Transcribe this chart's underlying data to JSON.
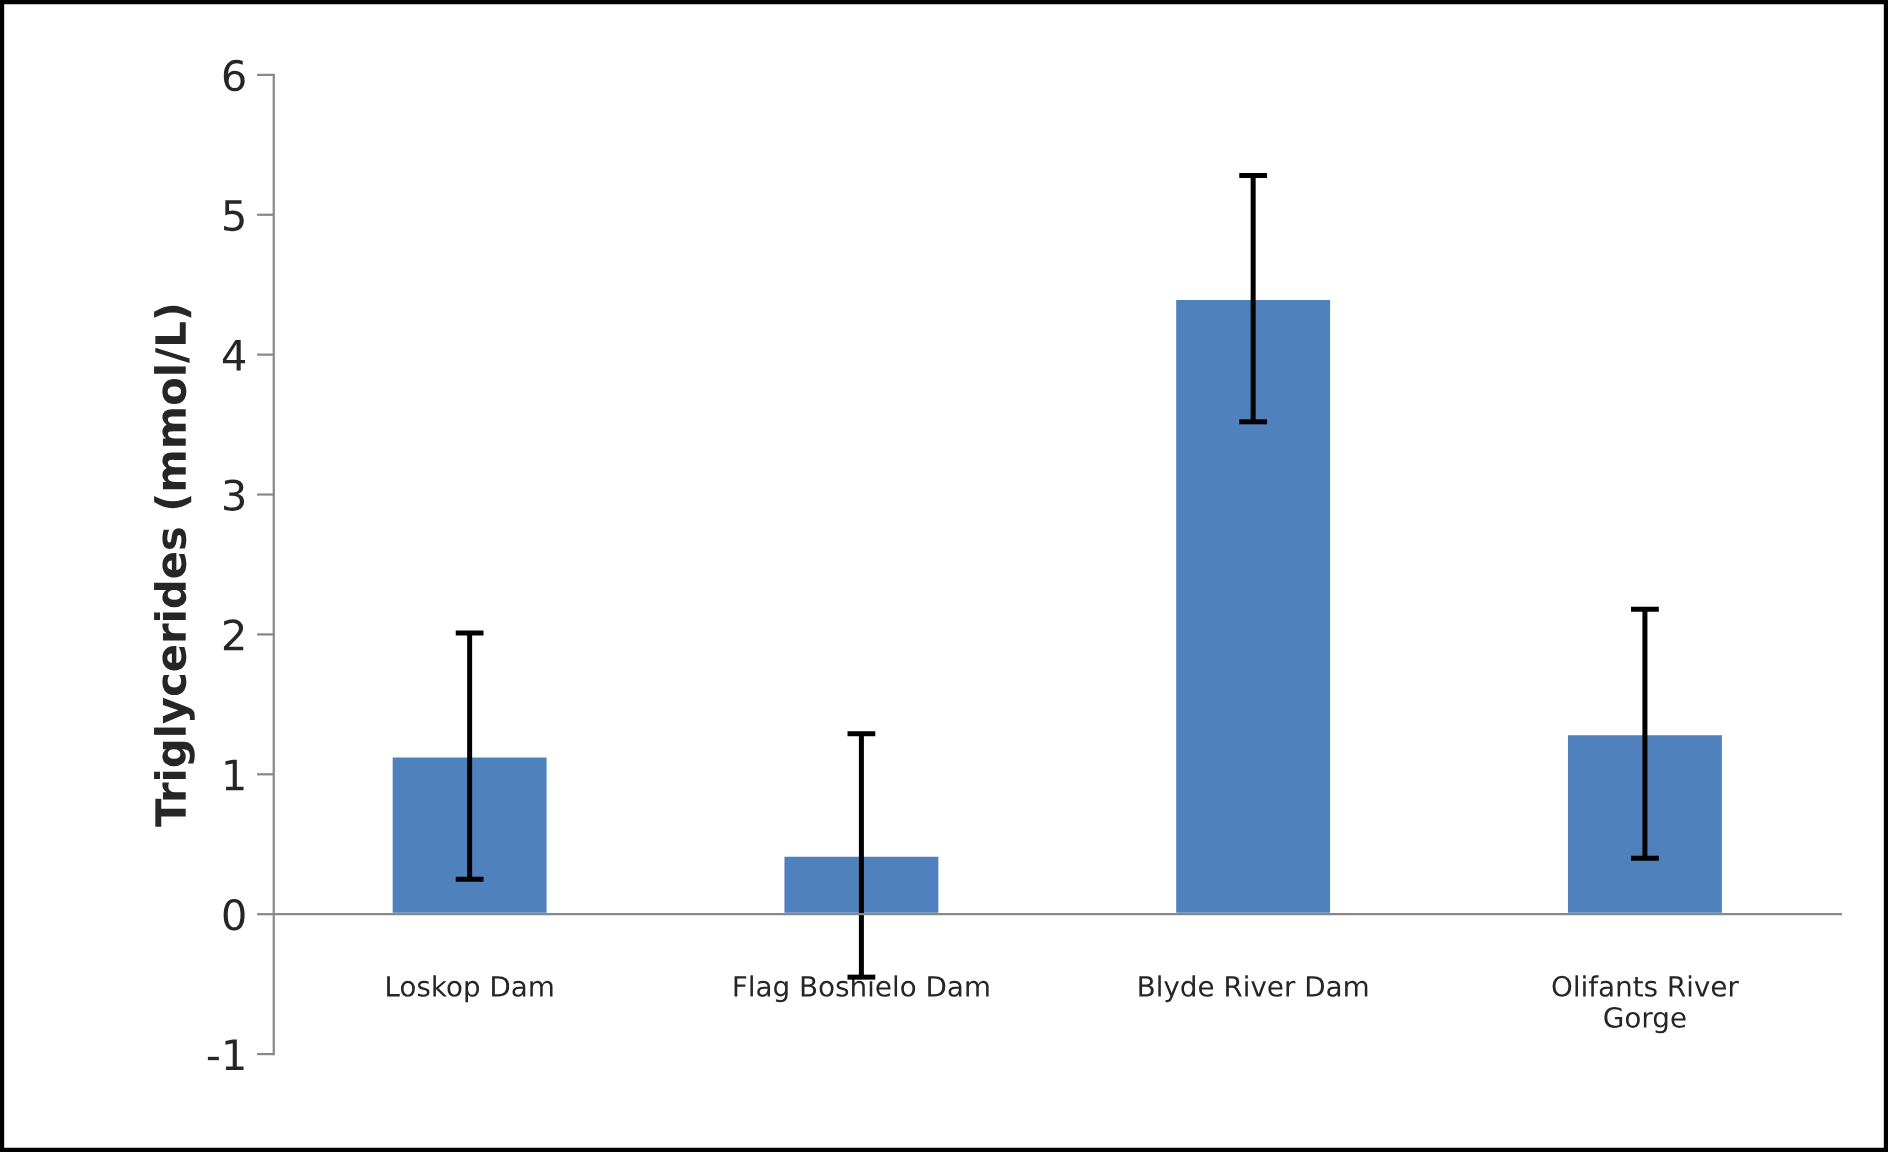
{
  "chart_data": {
    "type": "bar",
    "ylabel": "Triglycerides (mmol/L)",
    "categories": [
      "Loskop Dam",
      "Flag Boshielo Dam",
      "Blyde River Dam",
      "Olifants River\nGorge"
    ],
    "values": [
      1.13,
      0.42,
      4.4,
      1.29
    ],
    "errors": [
      0.88,
      0.87,
      0.88,
      0.89
    ],
    "color": "#4f81bd",
    "ylim": [
      -1,
      6
    ],
    "yticks": [
      -1,
      0,
      1,
      2,
      3,
      4,
      5,
      6
    ],
    "grid": false,
    "legend": false
  }
}
